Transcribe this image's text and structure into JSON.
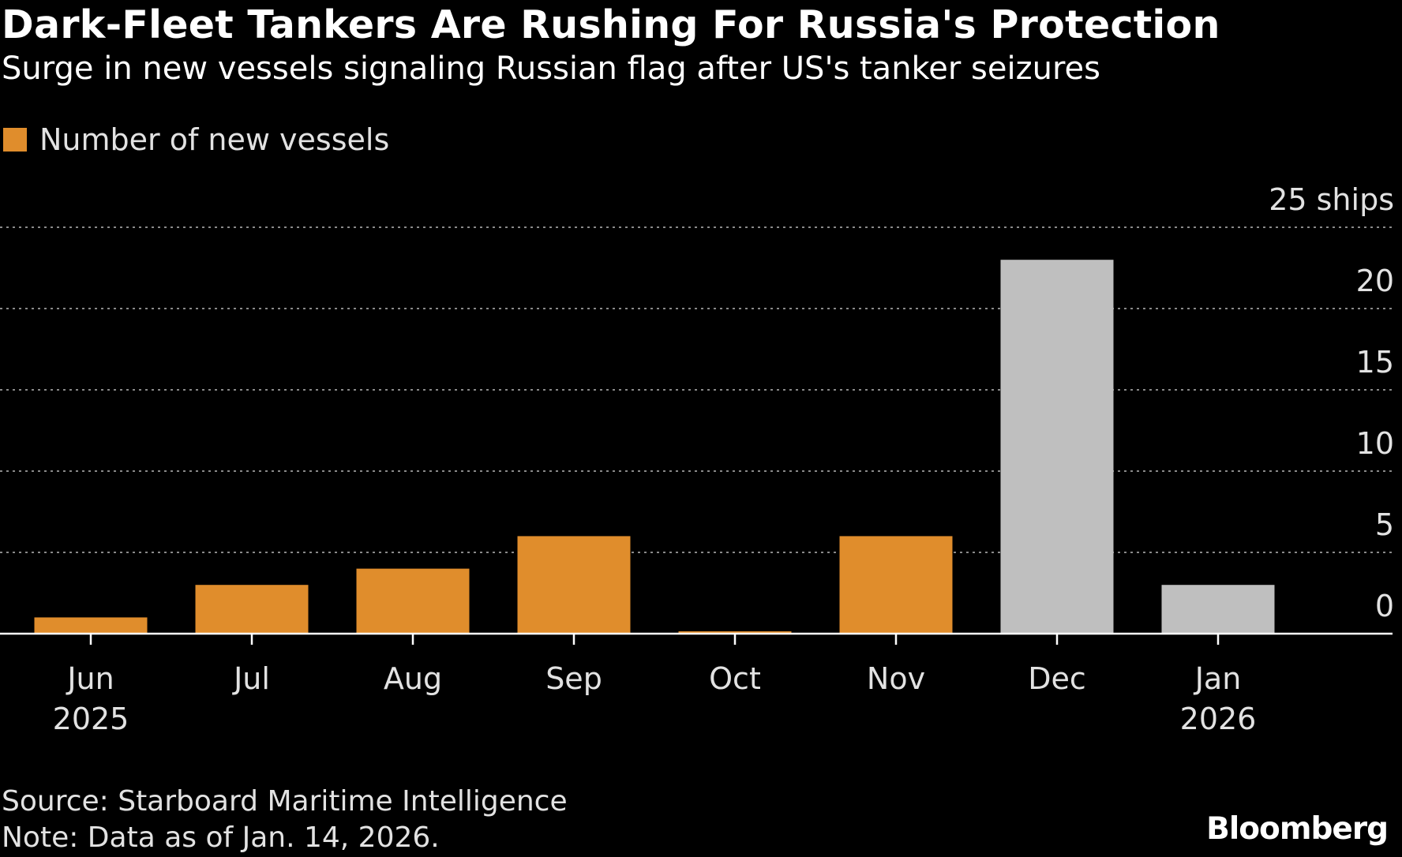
{
  "colors": {
    "background": "#000000",
    "text": "#ffffff",
    "muted_text": "#e2e2e2",
    "bar_primary": "#e08d2c",
    "bar_secondary": "#bfbfbf",
    "grid": "#8a8a8a"
  },
  "header": {
    "title": "Dark-Fleet Tankers Are Rushing For Russia's Protection",
    "subtitle": "Surge in new vessels signaling Russian flag after US's tanker seizures"
  },
  "legend": {
    "label": "Number of new vessels"
  },
  "footer": {
    "source": "Source: Starboard Maritime Intelligence",
    "note": "Note: Data as of Jan. 14, 2026.",
    "brand": "Bloomberg"
  },
  "chart_data": {
    "type": "bar",
    "title": "Dark-Fleet Tankers Are Rushing For Russia's Protection",
    "subtitle": "Surge in new vessels signaling Russian flag after US's tanker seizures",
    "xlabel": "",
    "ylabel": "",
    "categories": [
      "Jun",
      "Jul",
      "Aug",
      "Sep",
      "Oct",
      "Nov",
      "Dec",
      "Jan"
    ],
    "category_years": [
      "2025",
      "",
      "",
      "",
      "",
      "",
      "",
      "2026"
    ],
    "series": [
      {
        "name": "Number of new vessels",
        "values": [
          1,
          3,
          4,
          6,
          0,
          6,
          23,
          3
        ],
        "colors": [
          "#e08d2c",
          "#e08d2c",
          "#e08d2c",
          "#e08d2c",
          "#e08d2c",
          "#e08d2c",
          "#bfbfbf",
          "#bfbfbf"
        ]
      }
    ],
    "ylim": [
      0,
      25
    ],
    "yticks": [
      0,
      5,
      10,
      15,
      20,
      25
    ],
    "ytick_labels": [
      "0",
      "5",
      "10",
      "15",
      "20",
      "25 ships"
    ],
    "y_axis_side": "right",
    "grid": "dotted horizontal",
    "legend_position": "top-left"
  }
}
